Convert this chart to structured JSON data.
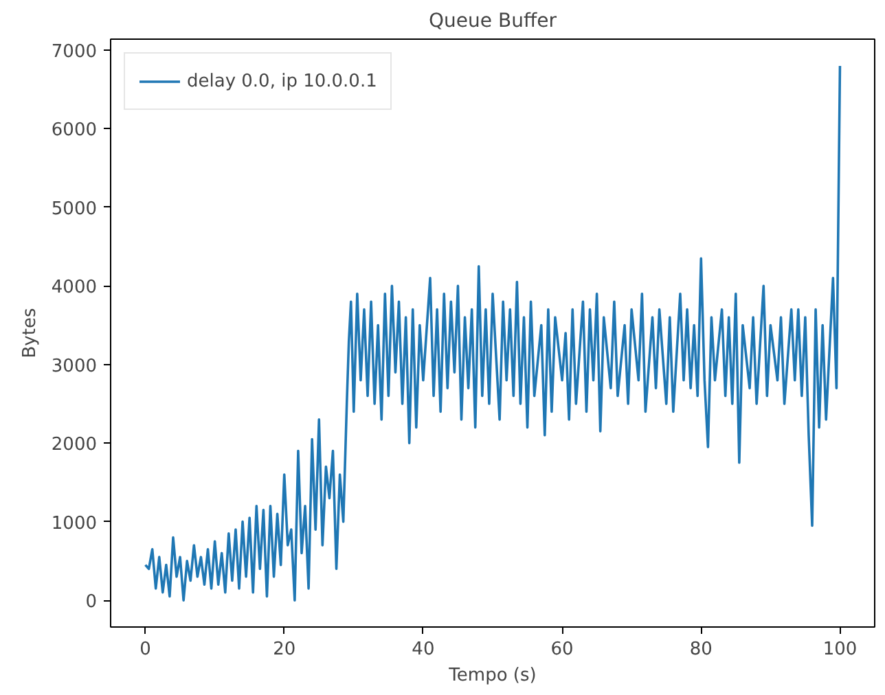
{
  "chart_data": {
    "type": "line",
    "title": "Queue Buffer",
    "xlabel": "Tempo (s)",
    "ylabel": "Bytes",
    "xlim": [
      -5,
      105
    ],
    "ylim": [
      -340,
      7140
    ],
    "xticks": [
      0,
      20,
      40,
      60,
      80,
      100
    ],
    "yticks": [
      0,
      1000,
      2000,
      3000,
      4000,
      5000,
      6000,
      7000
    ],
    "grid": false,
    "legend": "top left",
    "line_style": "solid",
    "marker": "none",
    "x": [
      0,
      0.5,
      1,
      1.5,
      2,
      2.5,
      3,
      3.5,
      4,
      4.5,
      5,
      5.5,
      6,
      6.5,
      7,
      7.5,
      8,
      8.5,
      9,
      9.5,
      10,
      10.5,
      11,
      11.5,
      12,
      12.5,
      13,
      13.5,
      14,
      14.5,
      15,
      15.5,
      16,
      16.5,
      17,
      17.5,
      18,
      18.5,
      19,
      19.5,
      20,
      20.5,
      21,
      21.5,
      22,
      22.5,
      23,
      23.5,
      24,
      24.5,
      25,
      25.5,
      26,
      26.5,
      27,
      27.5,
      28,
      28.5,
      29,
      29.3,
      29.6,
      30,
      30.5,
      31,
      31.5,
      32,
      32.5,
      33,
      33.5,
      34,
      34.5,
      35,
      35.5,
      36,
      36.5,
      37,
      37.5,
      38,
      38.5,
      39,
      39.5,
      40,
      41,
      41.5,
      42,
      42.5,
      43,
      43.5,
      44,
      44.5,
      45,
      45.5,
      46,
      46.5,
      47,
      47.5,
      48,
      48.5,
      49,
      49.5,
      50,
      51,
      51.5,
      52,
      52.5,
      53,
      53.5,
      54,
      54.5,
      55,
      55.5,
      56,
      57,
      57.5,
      58,
      58.5,
      59,
      60,
      60.5,
      61,
      61.5,
      62,
      63,
      63.5,
      64,
      64.5,
      65,
      65.5,
      66,
      67,
      67.5,
      68,
      69,
      69.5,
      70,
      71,
      71.5,
      72,
      73,
      73.5,
      74,
      75,
      75.5,
      76,
      77,
      77.5,
      78,
      78.5,
      79,
      79.5,
      80,
      80.5,
      81,
      81.5,
      82,
      83,
      83.5,
      84,
      84.5,
      85,
      85.5,
      86,
      87,
      87.5,
      88,
      89,
      89.5,
      90,
      91,
      91.5,
      92,
      93,
      93.5,
      94,
      94.5,
      95,
      95.5,
      96,
      96.5,
      97,
      97.5,
      98,
      98.5,
      99,
      99.5,
      100
    ],
    "series": [
      {
        "name": "delay 0.0, ip 10.0.0.1",
        "color": "#1f77b4",
        "values": [
          450,
          400,
          650,
          150,
          550,
          100,
          450,
          50,
          800,
          300,
          550,
          0,
          500,
          250,
          700,
          300,
          550,
          200,
          650,
          150,
          750,
          200,
          600,
          100,
          850,
          250,
          900,
          150,
          1000,
          300,
          1050,
          100,
          1200,
          400,
          1150,
          50,
          1200,
          300,
          1100,
          450,
          1600,
          700,
          900,
          0,
          1900,
          600,
          1200,
          150,
          2050,
          900,
          2300,
          700,
          1700,
          1300,
          1900,
          400,
          1600,
          1000,
          2500,
          3300,
          3800,
          2400,
          3900,
          2800,
          3700,
          2600,
          3800,
          2500,
          3500,
          2300,
          3900,
          2600,
          4000,
          2900,
          3800,
          2500,
          3600,
          2000,
          3700,
          2200,
          3500,
          2800,
          4100,
          2600,
          3700,
          2400,
          3900,
          2700,
          3800,
          2900,
          4000,
          2300,
          3600,
          2700,
          3700,
          2200,
          4250,
          2600,
          3700,
          2500,
          3900,
          2300,
          3800,
          2800,
          3700,
          2600,
          4050,
          2500,
          3600,
          2200,
          3800,
          2600,
          3500,
          2100,
          3700,
          2400,
          3600,
          2800,
          3400,
          2300,
          3700,
          2500,
          3800,
          2400,
          3700,
          2800,
          3900,
          2150,
          3600,
          2700,
          3800,
          2600,
          3500,
          2500,
          3700,
          2800,
          3900,
          2400,
          3600,
          2700,
          3700,
          2500,
          3600,
          2400,
          3900,
          2800,
          3700,
          2700,
          3500,
          2600,
          4350,
          2800,
          1950,
          3600,
          2800,
          3700,
          2600,
          3600,
          2500,
          3900,
          1750,
          3500,
          2700,
          3600,
          2500,
          4000,
          2600,
          3500,
          2800,
          3600,
          2500,
          3700,
          2800,
          3700,
          2600,
          3600,
          2100,
          950,
          3700,
          2200,
          3500,
          2300,
          3200,
          4100,
          2700,
          6800
        ]
      }
    ]
  }
}
